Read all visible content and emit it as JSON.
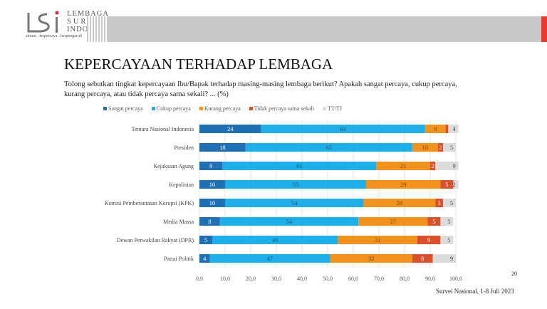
{
  "logo": {
    "line1": "LEMBAGA",
    "line2": "SURVEI",
    "line3": "INDONESIA",
    "tagline": "akurat . terpercaya . berpengaruh"
  },
  "title": "KEPERCAYAAN TERHADAP LEMBAGA",
  "question": "Tolong sebutkan tingkat kepercayaan Ibu/Bapak terhadap masing-masing lembaga berikut? Apakah sangat percaya, cukup percaya, kurang percaya, atau tidak percaya sama sekali? ... (%)",
  "page_number": "20",
  "footer": "Survei Nasional, 1-8 Juli 2023",
  "chart_data": {
    "type": "bar",
    "orientation": "horizontal-stacked",
    "categories": [
      "Tentara Nasional Indonesia",
      "Presiden",
      "Kejaksaan Agung",
      "Kepolisian",
      "Komisi Pemberantasan Korupsi (KPK)",
      "Media Massa",
      "Dewan Perwakilan Rakyat (DPR)",
      "Partai Politik"
    ],
    "series": [
      {
        "name": "Sangat percaya",
        "color": "#1f6fb4",
        "values": [
          24,
          18,
          9,
          10,
          10,
          8,
          5,
          4
        ]
      },
      {
        "name": "Cukup percaya",
        "color": "#1eaee8",
        "values": [
          64,
          65,
          60,
          55,
          54,
          54,
          49,
          47
        ]
      },
      {
        "name": "Kurang percaya",
        "color": "#f2921c",
        "values": [
          8,
          10,
          21,
          29,
          28,
          27,
          31,
          32
        ]
      },
      {
        "name": "Tidak percaya sama sekali",
        "color": "#d9502b",
        "values": [
          1,
          2,
          2,
          5,
          3,
          5,
          9,
          8
        ]
      },
      {
        "name": "TT/TJ",
        "color": "#dcdcdc",
        "values": [
          4,
          5,
          9,
          2,
          5,
          5,
          5,
          9
        ]
      }
    ],
    "xlim": [
      0,
      100
    ],
    "xticks": [
      "0,0",
      "10,0",
      "20,0",
      "30,0",
      "40,0",
      "50,0",
      "60,0",
      "70,0",
      "80,0",
      "90,0",
      "100,0"
    ],
    "grid": true,
    "legend": "top"
  }
}
